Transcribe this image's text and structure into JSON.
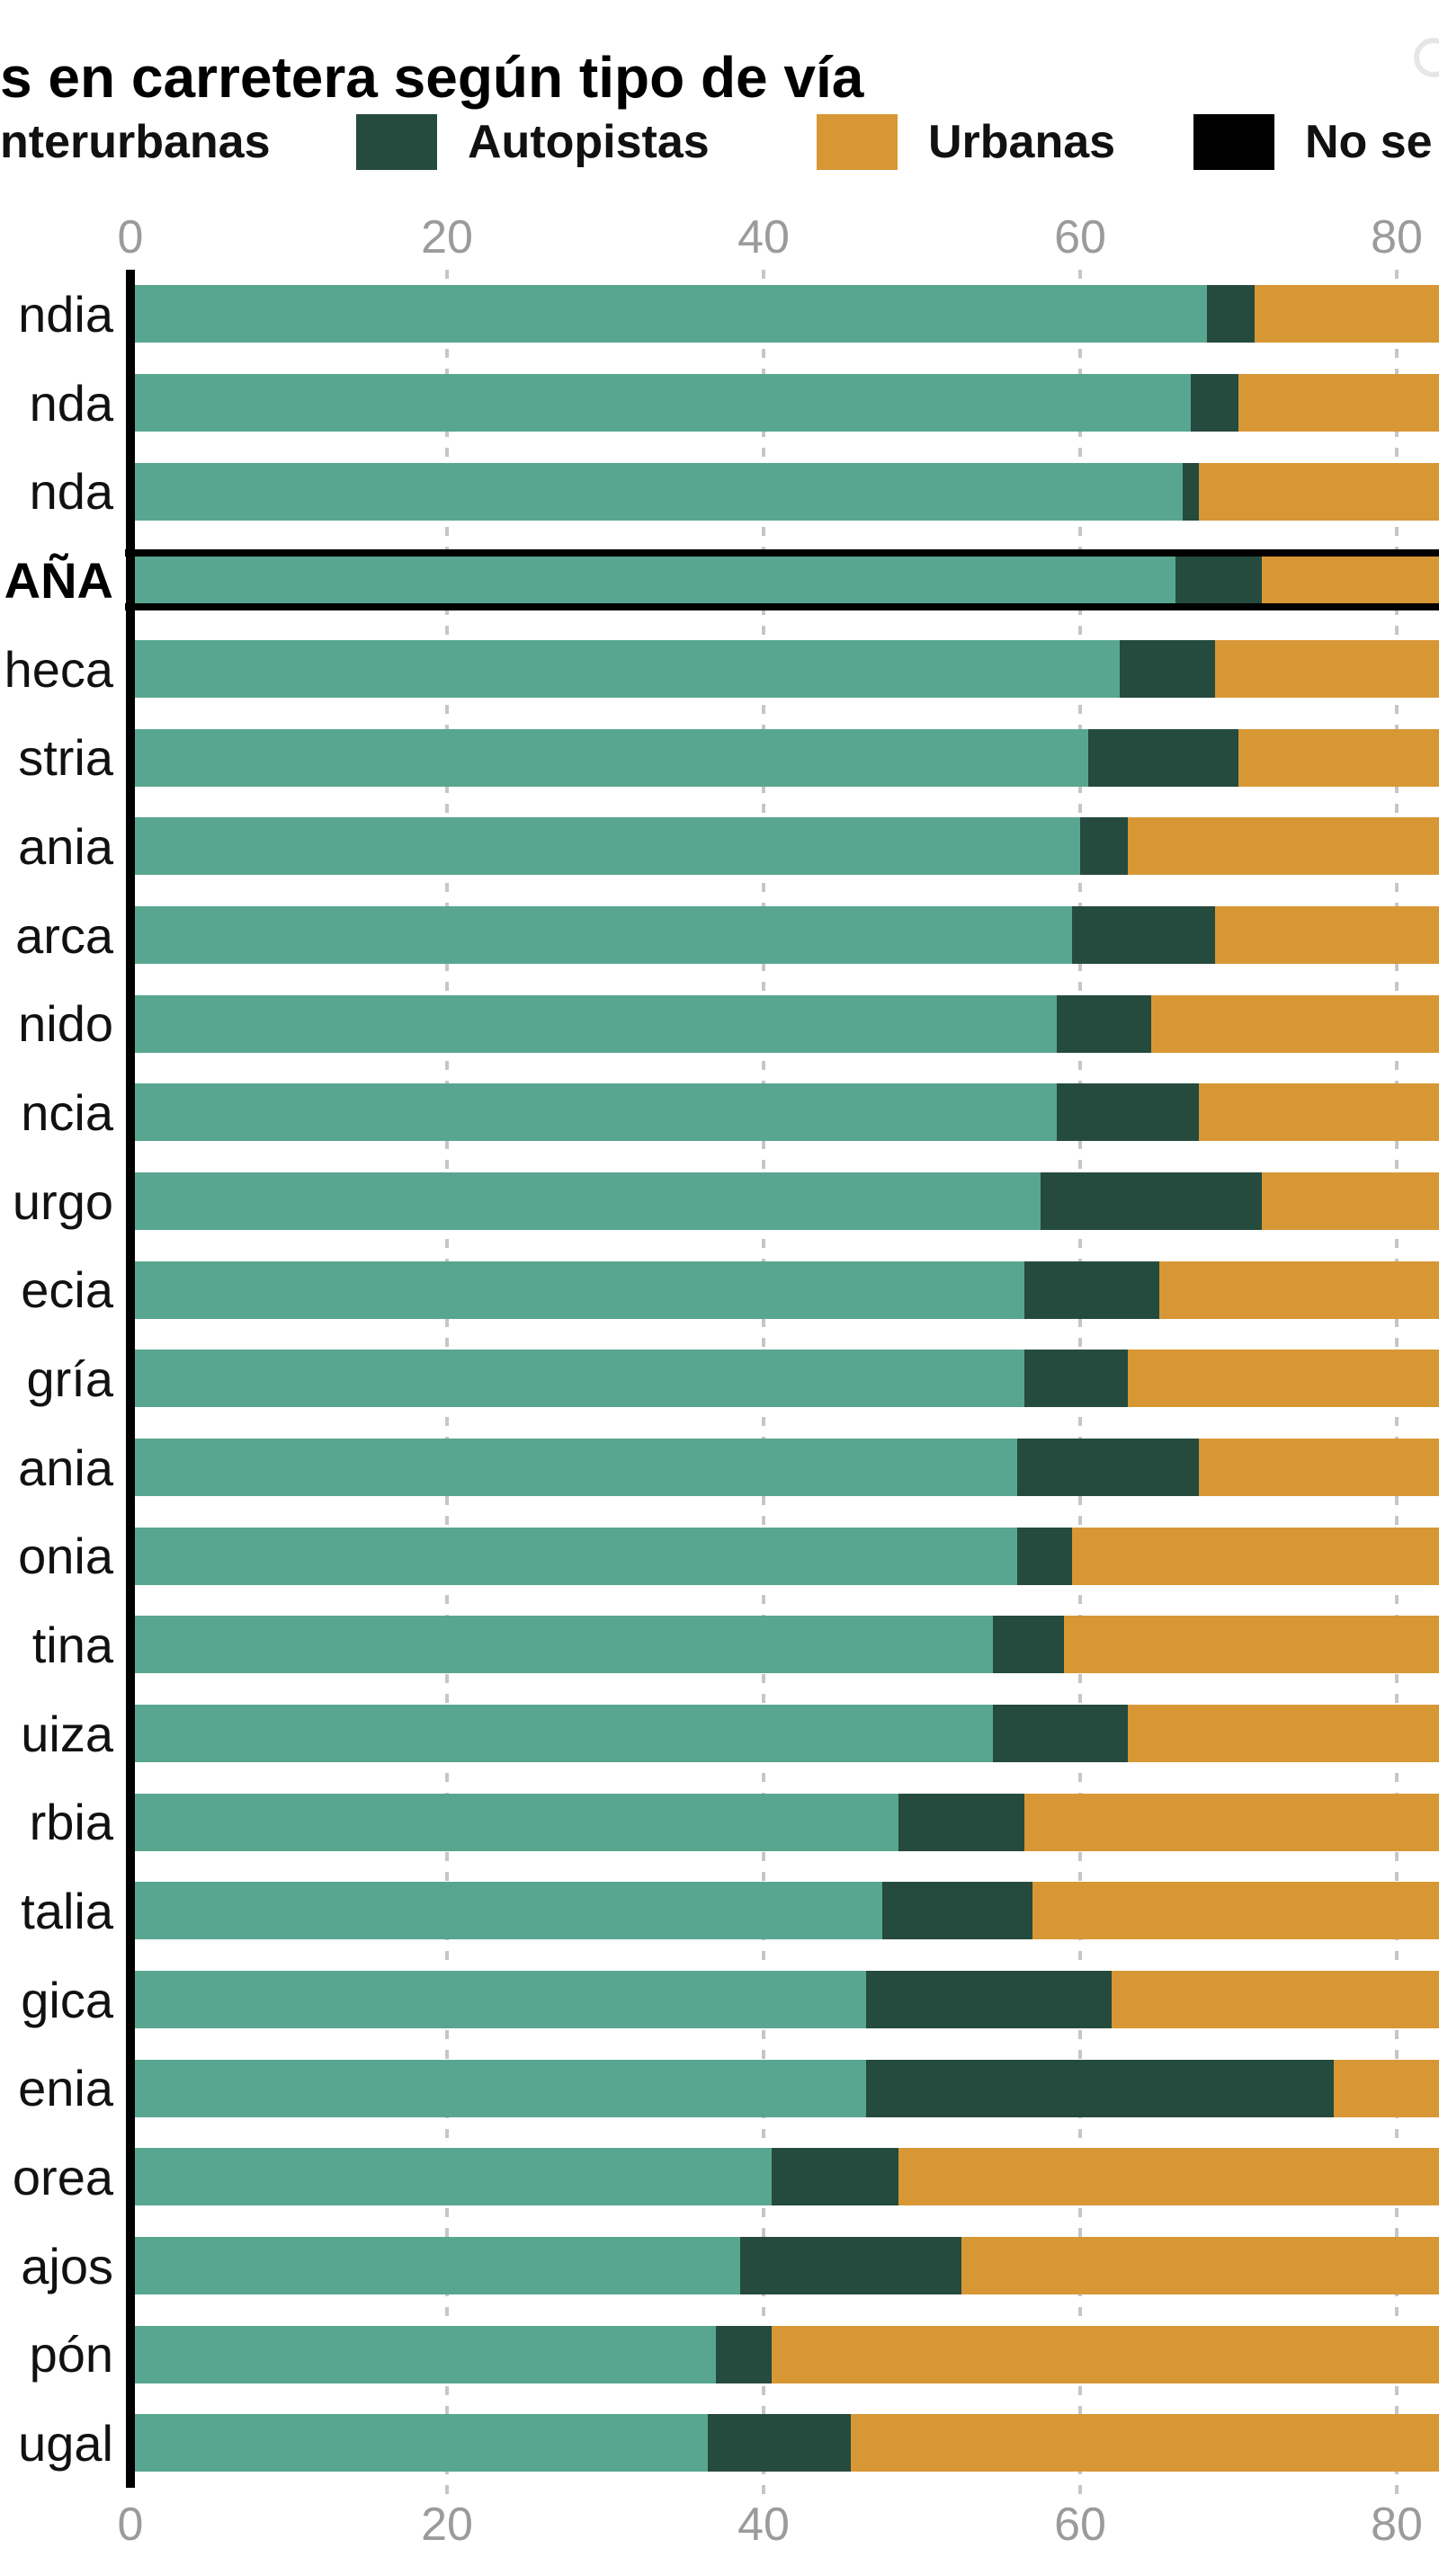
{
  "header": {
    "title_visible": "s en carretera según tipo de vía"
  },
  "legend": {
    "items": [
      {
        "label": "nterurbanas",
        "swatch_color": null
      },
      {
        "label": "Autopistas",
        "swatch_color": "#254a3e"
      },
      {
        "label": "Urbanas",
        "swatch_color": "#d89735"
      },
      {
        "label": "No se",
        "swatch_color": "#000000"
      }
    ]
  },
  "axis": {
    "ticks": [
      0,
      20,
      40,
      60,
      80
    ]
  },
  "colors": {
    "interurbanas": "#58a690",
    "autopistas": "#254a3e",
    "urbanas": "#d89735",
    "no_se": "#000000",
    "axis_text": "#9b9b9b",
    "gridline": "#c6c6c6"
  },
  "chart_data": {
    "type": "bar",
    "orientation": "horizontal",
    "stacked": true,
    "title": "s en carretera según tipo de vía",
    "x_ticks": [
      0,
      20,
      40,
      60,
      80
    ],
    "xlim_visible": [
      0,
      82.7
    ],
    "grid": "dashed-vertical",
    "legend_position": "top",
    "series_names": [
      "nterurbanas",
      "Autopistas",
      "Urbanas",
      "No se"
    ],
    "urbanas_extends_beyond_view": true,
    "rows": [
      {
        "label": "ndia",
        "highlight": false,
        "interurbanas": 68,
        "autopistas": 3
      },
      {
        "label": "nda",
        "highlight": false,
        "interurbanas": 67,
        "autopistas": 3
      },
      {
        "label": "nda",
        "highlight": false,
        "interurbanas": 66.5,
        "autopistas": 1
      },
      {
        "label": "AÑA",
        "highlight": true,
        "interurbanas": 66,
        "autopistas": 5.5
      },
      {
        "label": "heca",
        "highlight": false,
        "interurbanas": 62.5,
        "autopistas": 6
      },
      {
        "label": "stria",
        "highlight": false,
        "interurbanas": 60.5,
        "autopistas": 9.5
      },
      {
        "label": "ania",
        "highlight": false,
        "interurbanas": 60,
        "autopistas": 3
      },
      {
        "label": "arca",
        "highlight": false,
        "interurbanas": 59.5,
        "autopistas": 9
      },
      {
        "label": "nido",
        "highlight": false,
        "interurbanas": 58.5,
        "autopistas": 6
      },
      {
        "label": "ncia",
        "highlight": false,
        "interurbanas": 58.5,
        "autopistas": 9
      },
      {
        "label": "urgo",
        "highlight": false,
        "interurbanas": 57.5,
        "autopistas": 14
      },
      {
        "label": "ecia",
        "highlight": false,
        "interurbanas": 56.5,
        "autopistas": 8.5
      },
      {
        "label": "gría",
        "highlight": false,
        "interurbanas": 56.5,
        "autopistas": 6.5
      },
      {
        "label": "ania",
        "highlight": false,
        "interurbanas": 56,
        "autopistas": 11.5
      },
      {
        "label": "onia",
        "highlight": false,
        "interurbanas": 56,
        "autopistas": 3.5
      },
      {
        "label": "tina",
        "highlight": false,
        "interurbanas": 54.5,
        "autopistas": 4.5
      },
      {
        "label": "uiza",
        "highlight": false,
        "interurbanas": 54.5,
        "autopistas": 8.5
      },
      {
        "label": "rbia",
        "highlight": false,
        "interurbanas": 48.5,
        "autopistas": 8
      },
      {
        "label": "talia",
        "highlight": false,
        "interurbanas": 47.5,
        "autopistas": 9.5
      },
      {
        "label": "gica",
        "highlight": false,
        "interurbanas": 46.5,
        "autopistas": 15.5
      },
      {
        "label": "enia",
        "highlight": false,
        "interurbanas": 46.5,
        "autopistas": 29.5
      },
      {
        "label": "orea",
        "highlight": false,
        "interurbanas": 40.5,
        "autopistas": 8
      },
      {
        "label": "ajos",
        "highlight": false,
        "interurbanas": 38.5,
        "autopistas": 14
      },
      {
        "label": "pón",
        "highlight": false,
        "interurbanas": 37,
        "autopistas": 3.5
      },
      {
        "label": "ugal",
        "highlight": false,
        "interurbanas": 36.5,
        "autopistas": 9
      }
    ]
  }
}
